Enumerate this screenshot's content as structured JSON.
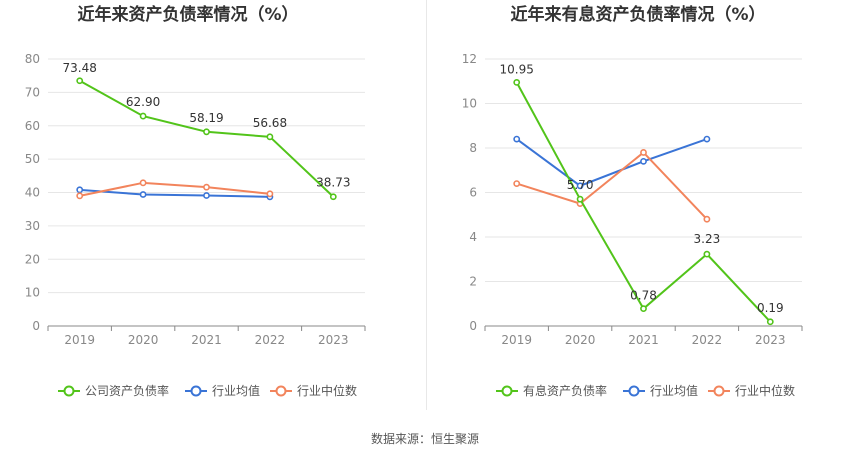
{
  "source_text": "数据来源：恒生聚源",
  "colors": {
    "primary": "#52c41a",
    "industry_avg": "#3a74d6",
    "industry_median": "#f2845c"
  },
  "chart_data": [
    {
      "type": "line",
      "title": "近年来资产负债率情况（%）",
      "categories": [
        "2019",
        "2020",
        "2021",
        "2022",
        "2023"
      ],
      "ylim": [
        0,
        80
      ],
      "yticks": [
        0,
        10,
        20,
        30,
        40,
        50,
        60,
        70,
        80
      ],
      "grid": true,
      "legend_position": "bottom",
      "series": [
        {
          "name": "公司资产负债率",
          "color": "#52c41a",
          "values": [
            73.48,
            62.9,
            58.19,
            56.68,
            38.73
          ],
          "labels": [
            "73.48",
            "62.90",
            "58.19",
            "56.68",
            "38.73"
          ]
        },
        {
          "name": "行业均值",
          "color": "#3a74d6",
          "values": [
            40.8,
            39.4,
            39.1,
            38.7,
            null
          ]
        },
        {
          "name": "行业中位数",
          "color": "#f2845c",
          "values": [
            39.0,
            42.9,
            41.6,
            39.6,
            null
          ]
        }
      ]
    },
    {
      "type": "line",
      "title": "近年来有息资产负债率情况（%）",
      "categories": [
        "2019",
        "2020",
        "2021",
        "2022",
        "2023"
      ],
      "ylim": [
        0,
        12
      ],
      "yticks": [
        0,
        2,
        4,
        6,
        8,
        10,
        12
      ],
      "grid": true,
      "legend_position": "bottom",
      "series": [
        {
          "name": "有息资产负债率",
          "color": "#52c41a",
          "values": [
            10.95,
            5.7,
            0.78,
            3.23,
            0.19
          ],
          "labels": [
            "10.95",
            "5.70",
            "0.78",
            "3.23",
            "0.19"
          ]
        },
        {
          "name": "行业均值",
          "color": "#3a74d6",
          "values": [
            8.4,
            6.3,
            7.4,
            8.4,
            null
          ]
        },
        {
          "name": "行业中位数",
          "color": "#f2845c",
          "values": [
            6.4,
            5.5,
            7.8,
            4.8,
            null
          ]
        }
      ]
    }
  ]
}
